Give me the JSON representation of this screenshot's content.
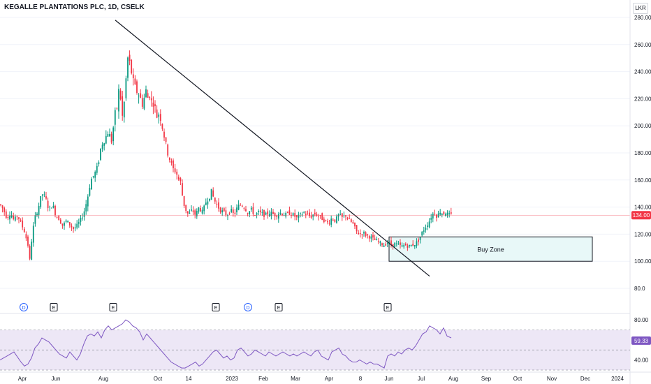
{
  "chart_data": {
    "type": "candlestick",
    "title": "KEGALLE PLANTATIONS PLC, 1D, CSELK",
    "currency": "LKR",
    "y_ticks": [
      "280.00",
      "260.00",
      "240.00",
      "220.00",
      "200.00",
      "180.00",
      "160.00",
      "140.00",
      "120.00",
      "100.00",
      "80.0"
    ],
    "ylim": [
      80,
      280
    ],
    "last_price_label": "134.00",
    "last_price": 134,
    "x_ticks": [
      "Apr",
      "Jun",
      "Aug",
      "Oct",
      "14",
      "2023",
      "Feb",
      "Mar",
      "Apr",
      "8",
      "Jun",
      "Jul",
      "Aug",
      "Sep",
      "Oct",
      "Nov",
      "Dec",
      "2024"
    ],
    "price_path": [
      [
        0,
        142
      ],
      [
        5,
        138
      ],
      [
        10,
        132
      ],
      [
        15,
        136
      ],
      [
        20,
        130
      ],
      [
        25,
        134
      ],
      [
        30,
        128
      ],
      [
        35,
        122
      ],
      [
        40,
        112
      ],
      [
        42,
        98
      ],
      [
        44,
        108
      ],
      [
        46,
        120
      ],
      [
        50,
        132
      ],
      [
        55,
        140
      ],
      [
        60,
        150
      ],
      [
        65,
        147
      ],
      [
        70,
        138
      ],
      [
        75,
        142
      ],
      [
        80,
        134
      ],
      [
        85,
        131
      ],
      [
        90,
        126
      ],
      [
        95,
        130
      ],
      [
        100,
        127
      ],
      [
        105,
        124
      ],
      [
        110,
        126
      ],
      [
        115,
        130
      ],
      [
        120,
        136
      ],
      [
        125,
        146
      ],
      [
        130,
        160
      ],
      [
        135,
        164
      ],
      [
        140,
        170
      ],
      [
        145,
        186
      ],
      [
        150,
        190
      ],
      [
        155,
        196
      ],
      [
        160,
        188
      ],
      [
        162,
        198
      ],
      [
        165,
        210
      ],
      [
        168,
        214
      ],
      [
        170,
        226
      ],
      [
        172,
        224
      ],
      [
        175,
        206
      ],
      [
        178,
        218
      ],
      [
        180,
        232
      ],
      [
        183,
        250
      ],
      [
        186,
        246
      ],
      [
        190,
        234
      ],
      [
        195,
        226
      ],
      [
        200,
        222
      ],
      [
        205,
        214
      ],
      [
        208,
        228
      ],
      [
        212,
        220
      ],
      [
        215,
        224
      ],
      [
        218,
        214
      ],
      [
        220,
        218
      ],
      [
        225,
        206
      ],
      [
        228,
        210
      ],
      [
        232,
        200
      ],
      [
        236,
        190
      ],
      [
        240,
        180
      ],
      [
        245,
        172
      ],
      [
        248,
        168
      ],
      [
        252,
        166
      ],
      [
        256,
        160
      ],
      [
        259,
        158
      ],
      [
        262,
        144
      ],
      [
        266,
        138
      ],
      [
        270,
        134
      ],
      [
        275,
        138
      ],
      [
        280,
        134
      ],
      [
        285,
        140
      ],
      [
        290,
        136
      ],
      [
        295,
        144
      ],
      [
        300,
        148
      ],
      [
        303,
        152
      ],
      [
        306,
        146
      ],
      [
        310,
        142
      ],
      [
        315,
        138
      ],
      [
        320,
        136
      ],
      [
        325,
        134
      ],
      [
        330,
        138
      ],
      [
        335,
        134
      ],
      [
        340,
        140
      ],
      [
        345,
        142
      ],
      [
        350,
        140
      ],
      [
        355,
        136
      ],
      [
        360,
        138
      ],
      [
        365,
        134
      ],
      [
        370,
        136
      ],
      [
        375,
        135
      ],
      [
        380,
        134
      ],
      [
        385,
        136
      ],
      [
        390,
        135
      ],
      [
        395,
        134
      ],
      [
        400,
        136
      ],
      [
        405,
        135
      ],
      [
        410,
        134
      ],
      [
        415,
        136
      ],
      [
        420,
        134
      ],
      [
        425,
        132
      ],
      [
        430,
        134
      ],
      [
        435,
        136
      ],
      [
        440,
        134
      ],
      [
        445,
        133
      ],
      [
        450,
        135
      ],
      [
        455,
        134
      ],
      [
        460,
        132
      ],
      [
        465,
        130
      ],
      [
        470,
        128
      ],
      [
        475,
        132
      ],
      [
        480,
        130
      ],
      [
        485,
        134
      ],
      [
        490,
        132
      ],
      [
        495,
        134
      ],
      [
        500,
        130
      ],
      [
        505,
        128
      ],
      [
        510,
        122
      ],
      [
        515,
        120
      ],
      [
        520,
        121
      ],
      [
        525,
        119
      ],
      [
        530,
        118
      ],
      [
        535,
        116
      ],
      [
        540,
        115
      ],
      [
        545,
        113
      ],
      [
        550,
        112
      ],
      [
        555,
        114
      ],
      [
        560,
        112
      ],
      [
        565,
        113
      ],
      [
        570,
        112
      ],
      [
        575,
        111
      ],
      [
        580,
        112
      ],
      [
        585,
        111
      ],
      [
        590,
        112
      ],
      [
        595,
        113
      ],
      [
        600,
        116
      ],
      [
        605,
        122
      ],
      [
        610,
        126
      ],
      [
        615,
        130
      ],
      [
        618,
        134
      ],
      [
        622,
        136
      ],
      [
        626,
        133
      ],
      [
        630,
        137
      ],
      [
        634,
        135
      ],
      [
        638,
        136
      ],
      [
        642,
        134
      ],
      [
        646,
        134
      ]
    ],
    "trendline": [
      [
        165,
        278
      ],
      [
        615,
        89
      ]
    ],
    "buy_zone": {
      "label": "Buy Zone",
      "x1": 557,
      "x2": 848,
      "y_low": 100,
      "y_high": 118
    },
    "events": [
      {
        "label": "D",
        "x": 34
      },
      {
        "label": "E",
        "x": 77
      },
      {
        "label": "E",
        "x": 162
      },
      {
        "label": "E",
        "x": 309
      },
      {
        "label": "D",
        "x": 355
      },
      {
        "label": "E",
        "x": 399
      },
      {
        "label": "E",
        "x": 555
      }
    ],
    "rsi": {
      "ylim": [
        30,
        85
      ],
      "y_ticks": [
        "80.00",
        "40.00"
      ],
      "upper_band": 70,
      "lower_band": 30,
      "middle": 50,
      "value_label": "59.33",
      "value": 59.33,
      "path": [
        [
          0,
          40
        ],
        [
          10,
          44
        ],
        [
          20,
          48
        ],
        [
          30,
          38
        ],
        [
          35,
          34
        ],
        [
          40,
          36
        ],
        [
          45,
          42
        ],
        [
          50,
          52
        ],
        [
          55,
          56
        ],
        [
          60,
          62
        ],
        [
          65,
          60
        ],
        [
          70,
          58
        ],
        [
          75,
          54
        ],
        [
          80,
          50
        ],
        [
          85,
          46
        ],
        [
          90,
          44
        ],
        [
          95,
          42
        ],
        [
          100,
          48
        ],
        [
          105,
          44
        ],
        [
          110,
          40
        ],
        [
          115,
          46
        ],
        [
          120,
          56
        ],
        [
          125,
          64
        ],
        [
          130,
          66
        ],
        [
          135,
          64
        ],
        [
          140,
          68
        ],
        [
          145,
          62
        ],
        [
          150,
          70
        ],
        [
          155,
          74
        ],
        [
          160,
          70
        ],
        [
          165,
          72
        ],
        [
          170,
          74
        ],
        [
          175,
          76
        ],
        [
          180,
          80
        ],
        [
          185,
          78
        ],
        [
          190,
          74
        ],
        [
          195,
          72
        ],
        [
          200,
          68
        ],
        [
          205,
          60
        ],
        [
          210,
          66
        ],
        [
          215,
          62
        ],
        [
          220,
          58
        ],
        [
          225,
          54
        ],
        [
          230,
          50
        ],
        [
          235,
          46
        ],
        [
          240,
          42
        ],
        [
          245,
          38
        ],
        [
          250,
          36
        ],
        [
          255,
          34
        ],
        [
          260,
          32
        ],
        [
          265,
          32
        ],
        [
          270,
          34
        ],
        [
          275,
          36
        ],
        [
          280,
          38
        ],
        [
          285,
          34
        ],
        [
          290,
          36
        ],
        [
          295,
          40
        ],
        [
          300,
          44
        ],
        [
          305,
          48
        ],
        [
          310,
          50
        ],
        [
          315,
          46
        ],
        [
          320,
          42
        ],
        [
          325,
          44
        ],
        [
          330,
          40
        ],
        [
          335,
          42
        ],
        [
          340,
          50
        ],
        [
          345,
          52
        ],
        [
          350,
          48
        ],
        [
          355,
          44
        ],
        [
          360,
          46
        ],
        [
          365,
          50
        ],
        [
          370,
          48
        ],
        [
          375,
          46
        ],
        [
          380,
          44
        ],
        [
          385,
          48
        ],
        [
          390,
          46
        ],
        [
          395,
          44
        ],
        [
          400,
          46
        ],
        [
          405,
          48
        ],
        [
          410,
          46
        ],
        [
          415,
          44
        ],
        [
          420,
          46
        ],
        [
          425,
          44
        ],
        [
          430,
          46
        ],
        [
          435,
          48
        ],
        [
          440,
          46
        ],
        [
          445,
          44
        ],
        [
          450,
          48
        ],
        [
          455,
          50
        ],
        [
          460,
          44
        ],
        [
          465,
          42
        ],
        [
          470,
          40
        ],
        [
          475,
          48
        ],
        [
          480,
          50
        ],
        [
          485,
          52
        ],
        [
          490,
          46
        ],
        [
          495,
          44
        ],
        [
          500,
          40
        ],
        [
          505,
          38
        ],
        [
          510,
          38
        ],
        [
          515,
          40
        ],
        [
          520,
          38
        ],
        [
          525,
          36
        ],
        [
          530,
          38
        ],
        [
          535,
          36
        ],
        [
          540,
          36
        ],
        [
          545,
          34
        ],
        [
          550,
          32
        ],
        [
          555,
          44
        ],
        [
          560,
          46
        ],
        [
          565,
          44
        ],
        [
          570,
          48
        ],
        [
          575,
          46
        ],
        [
          580,
          50
        ],
        [
          585,
          52
        ],
        [
          590,
          50
        ],
        [
          595,
          54
        ],
        [
          600,
          60
        ],
        [
          605,
          66
        ],
        [
          610,
          68
        ],
        [
          615,
          74
        ],
        [
          620,
          72
        ],
        [
          625,
          70
        ],
        [
          630,
          66
        ],
        [
          635,
          72
        ],
        [
          640,
          64
        ],
        [
          646,
          62
        ]
      ]
    }
  }
}
